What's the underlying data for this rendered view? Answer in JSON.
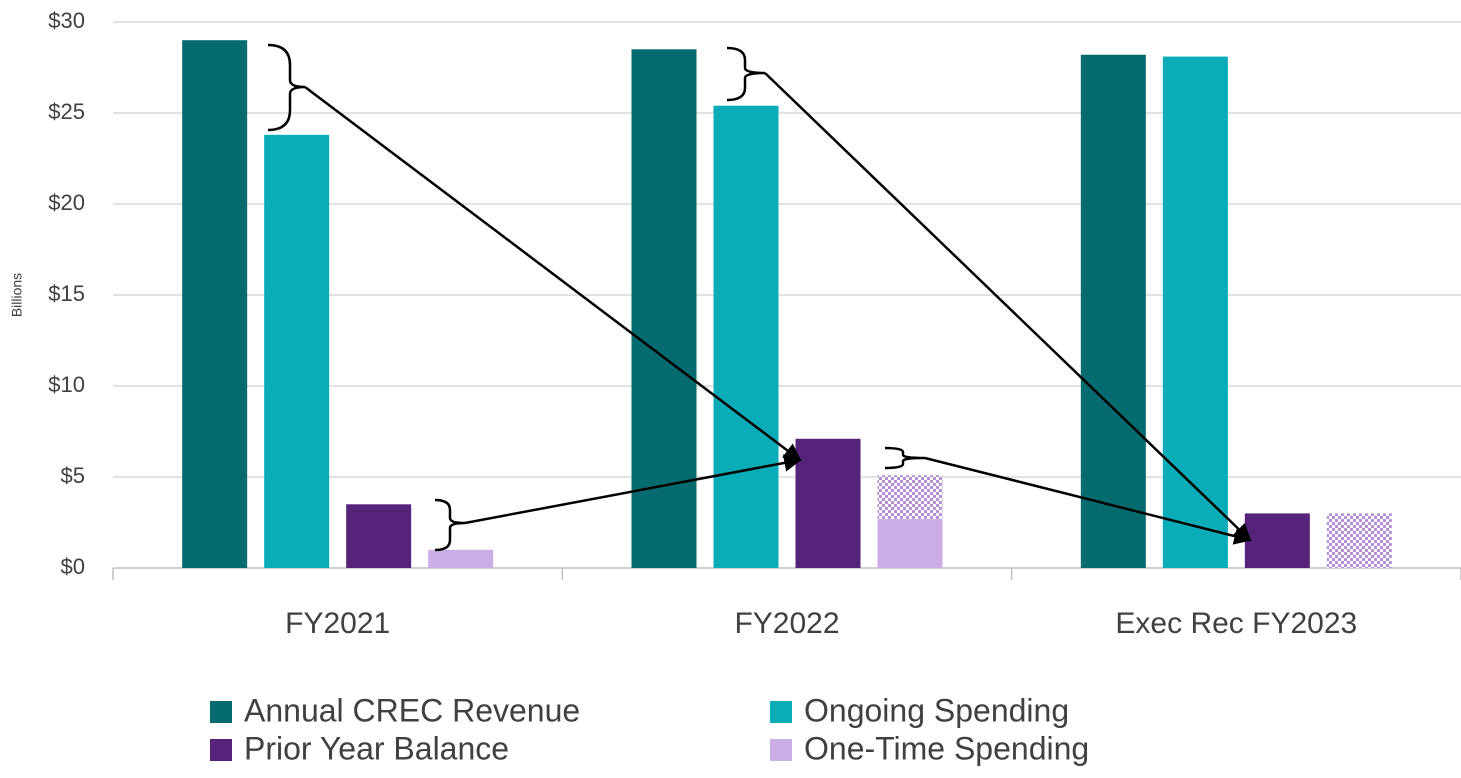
{
  "chart_data": {
    "type": "bar",
    "y_label": "Billions",
    "categories": [
      "FY2021",
      "FY2022",
      "Exec Rec FY2023"
    ],
    "series": [
      {
        "name": "Annual CREC Revenue",
        "color": "#056b6e",
        "values": [
          29.0,
          28.5,
          28.2
        ]
      },
      {
        "name": "Ongoing Spending",
        "color": "#0aacb8",
        "values": [
          23.8,
          25.4,
          28.1
        ]
      },
      {
        "name": "Prior Year Balance",
        "color": "#56237a",
        "values": [
          3.5,
          7.1,
          3.0
        ]
      },
      {
        "name": "One-Time Spending",
        "color": "#cbaee5",
        "values": [
          1.0,
          2.7,
          null
        ]
      },
      {
        "color": "#cbaee5",
        "pattern": "checker",
        "values": [
          null,
          2.4,
          3.0
        ]
      }
    ],
    "ylim": [
      0,
      30
    ],
    "yticks": [
      {
        "value": 0,
        "label": "$0"
      },
      {
        "value": 5,
        "label": "$5"
      },
      {
        "value": 10,
        "label": "$10"
      },
      {
        "value": 15,
        "label": "$15"
      },
      {
        "value": 20,
        "label": "$20"
      },
      {
        "value": 25,
        "label": "$25"
      },
      {
        "value": 30,
        "label": "$30"
      }
    ],
    "grid": true,
    "legend": "bottom"
  }
}
